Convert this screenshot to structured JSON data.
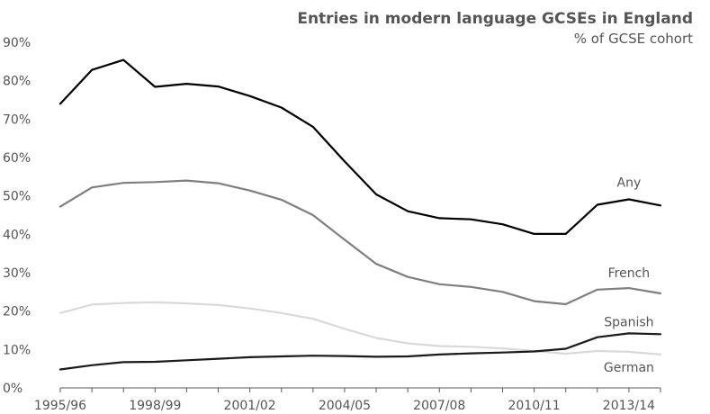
{
  "chart_data": {
    "type": "line",
    "title": "Entries in modern language GCSEs in England",
    "subtitle": "% of GCSE cohort",
    "xlabel": "",
    "ylabel": "",
    "x": [
      "1995/96",
      "1996/97",
      "1997/98",
      "1998/99",
      "1999/00",
      "2000/01",
      "2001/02",
      "2002/03",
      "2003/04",
      "2004/05",
      "2005/06",
      "2006/07",
      "2007/08",
      "2008/09",
      "2009/10",
      "2010/11",
      "2011/12",
      "2012/13",
      "2013/14",
      "2014/15"
    ],
    "x_tick_labels": [
      "1995/96",
      "1998/99",
      "2001/02",
      "2004/05",
      "2007/08",
      "2010/11",
      "2013/14"
    ],
    "y_tick_labels": [
      "0%",
      "10%",
      "20%",
      "30%",
      "40%",
      "50%",
      "60%",
      "70%",
      "80%",
      "90%"
    ],
    "ylim": [
      0,
      90
    ],
    "grid": false,
    "series": [
      {
        "name": "Any",
        "color": "#000000",
        "values": [
          74,
          82.8,
          85.4,
          78.4,
          79.2,
          78.5,
          76,
          73,
          68,
          59,
          50.4,
          46,
          44.2,
          43.9,
          42.6,
          40.1,
          40.1,
          47.7,
          49.1,
          47.5
        ]
      },
      {
        "name": "French",
        "color": "#7f7f7f",
        "values": [
          47.2,
          52.2,
          53.4,
          53.6,
          54,
          53.3,
          51.4,
          49,
          45,
          38.6,
          32.3,
          28.9,
          27,
          26.3,
          25,
          22.6,
          21.8,
          25.6,
          26,
          24.6
        ]
      },
      {
        "name": "Spanish",
        "color": "#1a1a1a",
        "values": [
          4.8,
          5.9,
          6.7,
          6.8,
          7.2,
          7.6,
          8,
          8.2,
          8.4,
          8.3,
          8.1,
          8.2,
          8.7,
          9,
          9.2,
          9.5,
          10.2,
          13.2,
          14.2,
          14
        ]
      },
      {
        "name": "German",
        "color": "#d9d9d9",
        "values": [
          19.5,
          21.7,
          22.1,
          22.3,
          22,
          21.6,
          20.7,
          19.5,
          18,
          15.4,
          13,
          11.6,
          10.9,
          10.7,
          10.3,
          9.6,
          8.9,
          9.6,
          9.4,
          8.7
        ]
      }
    ],
    "series_label_positions": {
      "Any": 18,
      "French": 18,
      "Spanish": 18,
      "German": 18
    }
  }
}
